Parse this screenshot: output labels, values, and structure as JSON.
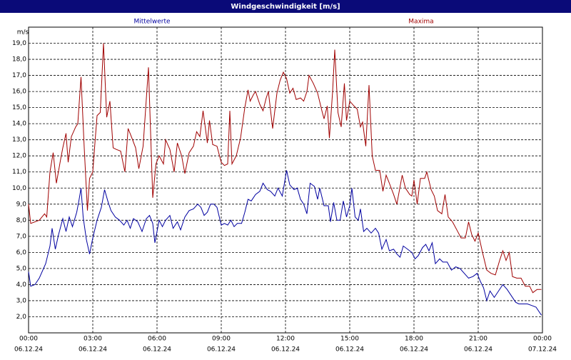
{
  "chart_data": {
    "type": "line",
    "title": "Windgeschwindigkeit [m/s]",
    "y_unit": "m/s",
    "xlim": [
      0,
      24
    ],
    "ylim": [
      1,
      20
    ],
    "grid": true,
    "xticks": [
      {
        "value": 0,
        "label": "00:00"
      },
      {
        "value": 3,
        "label": "03:00"
      },
      {
        "value": 6,
        "label": "06:00"
      },
      {
        "value": 9,
        "label": "09:00"
      },
      {
        "value": 12,
        "label": "12:00"
      },
      {
        "value": 15,
        "label": "15:00"
      },
      {
        "value": 18,
        "label": "18:00"
      },
      {
        "value": 21,
        "label": "21:00"
      },
      {
        "value": 24,
        "label": "00:00"
      }
    ],
    "xtick_dates": [
      "06.12.24",
      "06.12.24",
      "06.12.24",
      "06.12.24",
      "06.12.24",
      "06.12.24",
      "06.12.24",
      "06.12.24",
      "07.12.24"
    ],
    "yticks": [
      {
        "value": 2,
        "label": "2,0"
      },
      {
        "value": 3,
        "label": "3,0"
      },
      {
        "value": 4,
        "label": "4,0"
      },
      {
        "value": 5,
        "label": "5,0"
      },
      {
        "value": 6,
        "label": "6,0"
      },
      {
        "value": 7,
        "label": "7,0"
      },
      {
        "value": 8,
        "label": "8,0"
      },
      {
        "value": 9,
        "label": "9,0"
      },
      {
        "value": 10,
        "label": "10,0"
      },
      {
        "value": 11,
        "label": "11,0"
      },
      {
        "value": 12,
        "label": "12,0"
      },
      {
        "value": 13,
        "label": "13,0"
      },
      {
        "value": 14,
        "label": "14,0"
      },
      {
        "value": 15,
        "label": "15,0"
      },
      {
        "value": 16,
        "label": "16,0"
      },
      {
        "value": 17,
        "label": "17,0"
      },
      {
        "value": 18,
        "label": "18,0"
      },
      {
        "value": 19,
        "label": "19,0"
      }
    ],
    "series": [
      {
        "name": "Mittelwerte",
        "color": "#0000a0",
        "x": [
          0,
          0.1,
          0.3,
          0.5,
          0.8,
          1.0,
          1.1,
          1.25,
          1.4,
          1.6,
          1.75,
          1.9,
          2.05,
          2.25,
          2.35,
          2.45,
          2.55,
          2.7,
          2.85,
          3.0,
          3.2,
          3.4,
          3.55,
          3.7,
          3.85,
          4.05,
          4.25,
          4.45,
          4.6,
          4.75,
          4.9,
          5.1,
          5.3,
          5.5,
          5.65,
          5.8,
          5.9,
          6.1,
          6.25,
          6.4,
          6.6,
          6.75,
          6.95,
          7.1,
          7.3,
          7.5,
          7.7,
          7.9,
          8.05,
          8.2,
          8.35,
          8.5,
          8.65,
          8.8,
          9.0,
          9.15,
          9.3,
          9.45,
          9.6,
          9.75,
          9.95,
          10.1,
          10.25,
          10.4,
          10.6,
          10.8,
          10.95,
          11.15,
          11.3,
          11.5,
          11.65,
          11.85,
          12.05,
          12.2,
          12.4,
          12.55,
          12.7,
          12.85,
          13.0,
          13.15,
          13.35,
          13.5,
          13.6,
          13.8,
          14.0,
          14.1,
          14.25,
          14.4,
          14.55,
          14.7,
          14.85,
          15.0,
          15.1,
          15.25,
          15.4,
          15.5,
          15.65,
          15.8,
          16.0,
          16.2,
          16.35,
          16.5,
          16.7,
          16.85,
          17.05,
          17.2,
          17.35,
          17.5,
          17.7,
          17.9,
          18.05,
          18.2,
          18.4,
          18.55,
          18.7,
          18.85,
          19.0,
          19.2,
          19.35,
          19.55,
          19.75,
          19.95,
          20.15,
          20.35,
          20.55,
          20.75,
          20.95,
          21.1,
          21.25,
          21.4,
          21.55,
          21.75,
          21.95,
          22.15,
          22.35,
          22.55,
          22.75,
          22.9,
          23.1,
          23.3,
          23.5,
          23.7,
          23.95
        ],
        "values": [
          4.8,
          3.9,
          4.0,
          4.4,
          5.3,
          6.4,
          7.5,
          6.2,
          7.1,
          8.1,
          7.3,
          8.2,
          7.6,
          8.5,
          9.2,
          10.0,
          8.2,
          6.8,
          5.9,
          6.9,
          8.0,
          8.8,
          9.9,
          9.2,
          8.6,
          8.2,
          8.0,
          7.7,
          8.0,
          7.5,
          8.1,
          7.9,
          7.3,
          8.1,
          8.3,
          7.8,
          6.6,
          8.0,
          7.6,
          8.0,
          8.3,
          7.5,
          7.9,
          7.4,
          8.2,
          8.6,
          8.7,
          9.0,
          8.8,
          8.3,
          8.5,
          9.0,
          9.0,
          8.8,
          7.7,
          7.8,
          7.7,
          8.0,
          7.6,
          7.8,
          7.8,
          8.5,
          9.3,
          9.2,
          9.6,
          9.8,
          10.3,
          9.9,
          9.8,
          9.5,
          10.0,
          9.5,
          11.1,
          10.2,
          9.9,
          10.0,
          9.3,
          9.0,
          8.4,
          10.3,
          10.1,
          9.3,
          10.0,
          8.9,
          8.9,
          7.9,
          9.1,
          8.0,
          8.0,
          9.2,
          8.2,
          8.9,
          10.0,
          8.2,
          8.0,
          8.7,
          7.3,
          7.5,
          7.2,
          7.5,
          7.2,
          6.2,
          6.8,
          6.1,
          6.2,
          5.9,
          5.7,
          6.4,
          6.2,
          6.0,
          5.6,
          5.8,
          6.3,
          6.5,
          6.1,
          6.6,
          5.3,
          5.6,
          5.4,
          5.4,
          4.9,
          5.1,
          5.0,
          4.7,
          4.4,
          4.5,
          4.7,
          4.2,
          3.8,
          3.0,
          3.6,
          3.2,
          3.6,
          4.0,
          3.7,
          3.3,
          2.9,
          2.8,
          2.8,
          2.8,
          2.7,
          2.6,
          2.1
        ]
      },
      {
        "name": "Maxima",
        "color": "#a00000",
        "x": [
          0,
          0.1,
          0.5,
          0.75,
          0.85,
          1.0,
          1.15,
          1.3,
          1.5,
          1.6,
          1.75,
          1.85,
          2.0,
          2.2,
          2.3,
          2.45,
          2.6,
          2.75,
          2.85,
          3.0,
          3.1,
          3.2,
          3.35,
          3.5,
          3.65,
          3.8,
          3.95,
          4.1,
          4.3,
          4.5,
          4.65,
          4.8,
          5.0,
          5.15,
          5.35,
          5.6,
          5.8,
          5.95,
          6.1,
          6.3,
          6.4,
          6.6,
          6.8,
          6.95,
          7.15,
          7.3,
          7.5,
          7.7,
          7.85,
          8.0,
          8.15,
          8.35,
          8.45,
          8.6,
          8.8,
          9.0,
          9.15,
          9.3,
          9.4,
          9.5,
          9.7,
          9.9,
          10.1,
          10.25,
          10.35,
          10.5,
          10.6,
          10.8,
          10.95,
          11.1,
          11.2,
          11.4,
          11.6,
          11.75,
          11.9,
          12.05,
          12.2,
          12.35,
          12.5,
          12.7,
          12.85,
          13.0,
          13.1,
          13.3,
          13.5,
          13.7,
          13.8,
          13.95,
          14.05,
          14.2,
          14.3,
          14.45,
          14.6,
          14.75,
          14.85,
          15.0,
          15.2,
          15.35,
          15.5,
          15.6,
          15.75,
          15.9,
          16.05,
          16.2,
          16.4,
          16.55,
          16.7,
          16.85,
          17.05,
          17.2,
          17.45,
          17.6,
          17.8,
          17.9,
          18.0,
          18.15,
          18.3,
          18.5,
          18.6,
          18.8,
          18.95,
          19.1,
          19.3,
          19.45,
          19.6,
          19.8,
          20.0,
          20.2,
          20.4,
          20.55,
          20.7,
          20.85,
          21.0,
          21.2,
          21.4,
          21.6,
          21.8,
          22.0,
          22.15,
          22.3,
          22.45,
          22.6,
          22.8,
          23.0,
          23.2,
          23.4,
          23.55,
          23.75,
          23.95
        ],
        "values": [
          9.0,
          7.8,
          8.0,
          8.4,
          8.2,
          11.0,
          12.2,
          10.3,
          11.8,
          12.5,
          13.4,
          11.6,
          13.2,
          13.8,
          14.0,
          16.9,
          12.5,
          8.6,
          10.6,
          11.0,
          12.8,
          14.5,
          14.7,
          19.0,
          14.4,
          15.4,
          12.5,
          12.4,
          12.3,
          11.0,
          13.7,
          13.2,
          12.5,
          11.2,
          12.6,
          17.5,
          9.4,
          11.5,
          12.0,
          11.5,
          13.0,
          12.4,
          11.0,
          12.8,
          12.0,
          10.9,
          12.2,
          12.6,
          13.5,
          13.2,
          14.8,
          12.8,
          14.2,
          12.7,
          12.6,
          11.6,
          11.4,
          11.5,
          14.8,
          11.5,
          12.0,
          13.1,
          15.0,
          16.1,
          15.4,
          15.8,
          16.0,
          15.2,
          14.8,
          15.6,
          16.0,
          13.7,
          15.9,
          16.7,
          17.2,
          16.8,
          15.9,
          16.2,
          15.5,
          15.6,
          15.4,
          16.0,
          17.0,
          16.5,
          15.9,
          14.8,
          14.3,
          15.1,
          13.1,
          16.0,
          18.6,
          14.7,
          13.8,
          16.5,
          14.2,
          15.4,
          15.1,
          14.9,
          13.8,
          14.1,
          12.6,
          16.4,
          12.0,
          11.1,
          11.1,
          9.8,
          10.8,
          10.3,
          9.6,
          9.0,
          10.8,
          10.0,
          9.6,
          9.5,
          10.5,
          9.0,
          10.6,
          10.6,
          11.0,
          9.9,
          9.5,
          8.6,
          8.4,
          9.6,
          8.2,
          7.9,
          7.4,
          6.9,
          6.9,
          7.9,
          7.1,
          6.7,
          7.2,
          6.0,
          4.9,
          4.7,
          4.6,
          5.5,
          6.1,
          5.5,
          6.0,
          4.5,
          4.4,
          4.4,
          3.9,
          3.9,
          3.5,
          3.7,
          3.7
        ]
      }
    ]
  }
}
